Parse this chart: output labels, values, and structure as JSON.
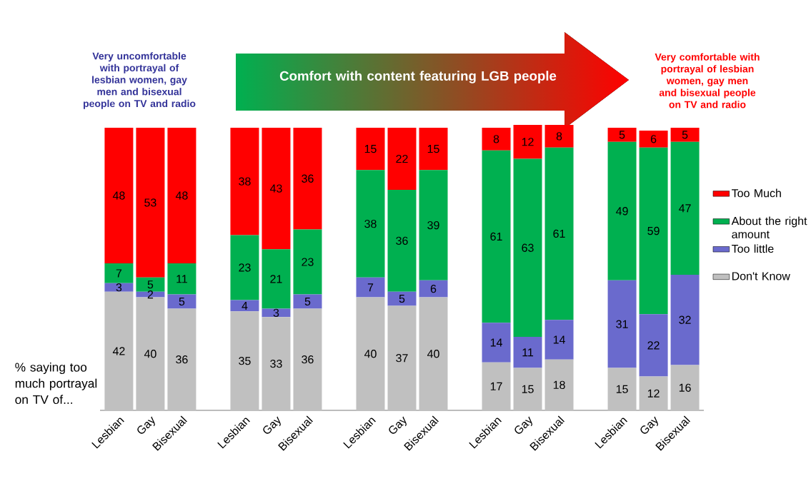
{
  "chart_data": {
    "type": "bar",
    "stacked": true,
    "data_labels": true,
    "legend": "right",
    "categories": [
      "Lesbian",
      "Gay",
      "Bisexual",
      null,
      "Lesbian",
      "Gay",
      "Bisexual",
      null,
      "Lesbian",
      "Gay",
      "Bisexual",
      null,
      "Lesbian",
      "Gay",
      "Bisexual",
      null,
      "Lesbian",
      "Gay",
      "Bisexual"
    ],
    "series": [
      {
        "name": "Don't Know",
        "color": "#c0c0c0",
        "values": [
          42,
          40,
          36,
          null,
          35,
          33,
          36,
          null,
          40,
          37,
          40,
          null,
          17,
          15,
          18,
          null,
          15,
          12,
          16
        ]
      },
      {
        "name": "Too little",
        "color": "#6a6acd",
        "values": [
          3,
          2,
          5,
          null,
          4,
          3,
          5,
          null,
          7,
          5,
          6,
          null,
          14,
          11,
          14,
          null,
          31,
          22,
          32
        ]
      },
      {
        "name": "About the right amount",
        "color": "#00b050",
        "values": [
          7,
          5,
          11,
          null,
          23,
          21,
          23,
          null,
          38,
          36,
          39,
          null,
          61,
          63,
          61,
          null,
          49,
          59,
          47
        ]
      },
      {
        "name": "Too Much",
        "color": "#ff0000",
        "values": [
          48,
          53,
          48,
          null,
          38,
          43,
          36,
          null,
          15,
          22,
          15,
          null,
          8,
          12,
          8,
          null,
          5,
          6,
          5
        ]
      }
    ],
    "annotations": [
      "Very uncomfortable with portrayal of lesbian women, gay men and bisexual people on TV and radio",
      "Comfort with content featuring LGB people",
      "Very comfortable with portrayal of lesbian women, gay men and bisexual people on TV and radio",
      "% saying too much portrayal on TV of..."
    ]
  }
}
